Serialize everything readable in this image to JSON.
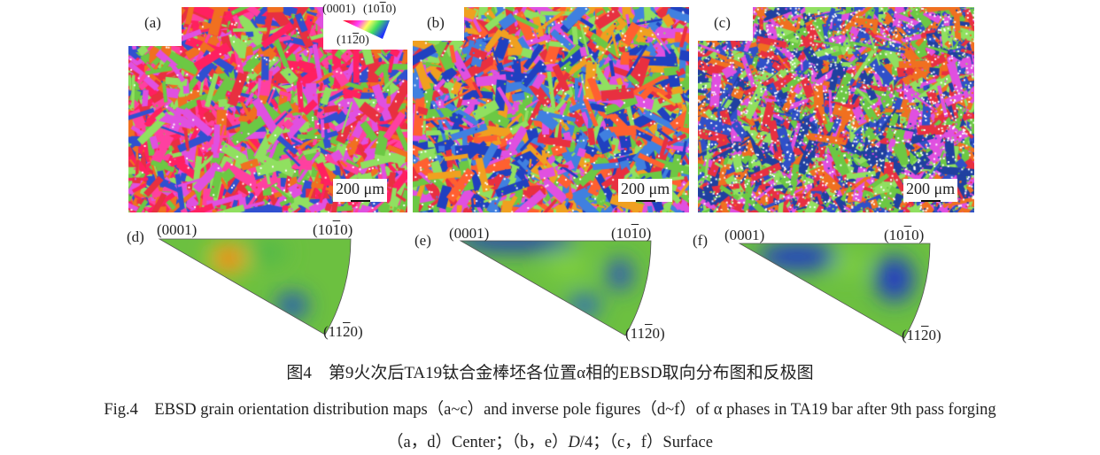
{
  "panels": {
    "a": {
      "label": "(a)",
      "scale": "200 μm"
    },
    "b": {
      "label": "(b)",
      "scale": "200 μm"
    },
    "c": {
      "label": "(c)",
      "scale": "200 μm"
    },
    "d": {
      "label": "(d)"
    },
    "e": {
      "label": "(e)"
    },
    "f": {
      "label": "(f)"
    }
  },
  "legend": {
    "p0001": "(0001)",
    "p1010": "(10",
    "p1010_bar": "1",
    "p1010_end": "0)",
    "p1120": "(11",
    "p1120_bar": "2",
    "p1120_end": "0)"
  },
  "ipf_labels": {
    "p0001": "(0001)",
    "p1010_a": "(10",
    "p1010_bar": "1",
    "p1010_b": "0)",
    "p1120_a": "(11",
    "p1120_bar": "2",
    "p1120_b": "0)"
  },
  "caption": {
    "zh": "图4　第9火次后TA19钛合金棒坯各位置α相的EBSD取向分布图和反极图",
    "en": "Fig.4　EBSD grain orientation distribution maps（a~c）and inverse pole figures（d~f）of α phases in TA19 bar after 9th pass forging",
    "sub_a": "（a，d）Center；（b，e）",
    "sub_italic": "D",
    "sub_b": "/4；（c，f）Surface"
  },
  "colors": {
    "green": "#6cc644",
    "red": "#e8283c",
    "blue": "#2040c0",
    "magenta": "#e040d0",
    "orange": "#f07020"
  }
}
